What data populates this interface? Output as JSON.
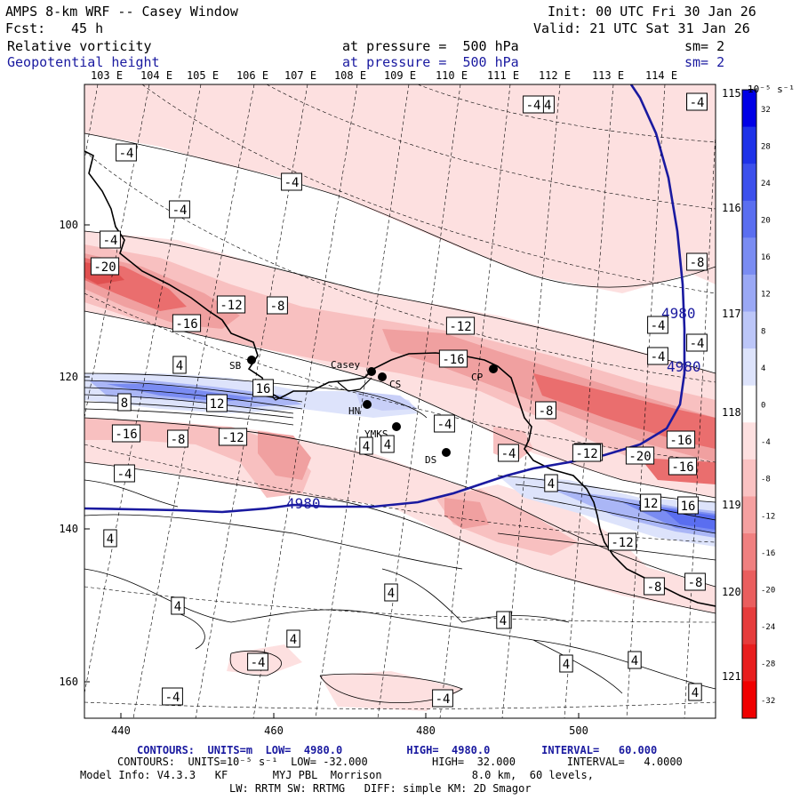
{
  "header": {
    "title": "AMPS 8-km WRF -- Casey Window",
    "fcst_label": "Fcst:",
    "fcst_value": "45 h",
    "init": "Init: 00 UTC Fri 30 Jan 26",
    "valid": "Valid: 21 UTC Sat 31 Jan 26",
    "field1_name": "Relative vorticity",
    "field1_level": "at pressure =  500 hPa",
    "field1_sm": "sm= 2",
    "field2_name": "Geopotential height",
    "field2_level": "at pressure =  500 hPa",
    "field2_sm": "sm= 2"
  },
  "axes": {
    "lon_top": [
      "103 E",
      "104 E",
      "105 E",
      "106 E",
      "107 E",
      "108 E",
      "109 E",
      "110 E",
      "111 E",
      "112 E",
      "113 E",
      "114 E"
    ],
    "lon_right": [
      "115 E",
      "116 E",
      "117 E",
      "118 E",
      "119 E",
      "120 E",
      "121 E"
    ],
    "y_ticks": [
      "100",
      "120",
      "140",
      "160"
    ],
    "x_ticks": [
      "440",
      "460",
      "480",
      "500"
    ]
  },
  "colorbar": {
    "unit": "10⁻⁵ s⁻¹",
    "labels": [
      "32",
      "28",
      "24",
      "20",
      "16",
      "12",
      "8",
      "4",
      "0",
      "-4",
      "-8",
      "-12",
      "-16",
      "-20",
      "-24",
      "-28",
      "-32"
    ],
    "colors": [
      "#0000e6",
      "#1e32e8",
      "#3c50ec",
      "#5a6ef0",
      "#7a8cf2",
      "#9aa8f5",
      "#bcc6f8",
      "#dde3fb",
      "#ffffff",
      "#fde0e0",
      "#fac2c2",
      "#f5a0a0",
      "#f08080",
      "#ea5e5e",
      "#e63c3c",
      "#e81e1e",
      "#f00000"
    ]
  },
  "stations": [
    {
      "name": "SB"
    },
    {
      "name": "Casey"
    },
    {
      "name": "CS"
    },
    {
      "name": "HN"
    },
    {
      "name": "YMKS"
    },
    {
      "name": "DS"
    },
    {
      "name": "CP"
    }
  ],
  "contour_labels": {
    "vorticity": [
      "-4",
      "-4",
      "-4",
      "-4",
      "-4",
      "-4",
      "-4",
      "-20",
      "-8",
      "-12",
      "-8",
      "-16",
      "-12",
      "-4",
      "4",
      "-16",
      "-4",
      "-4",
      "8",
      "16",
      "12",
      "-8",
      "-4",
      "-16",
      "-8",
      "-12",
      "-16",
      "-20",
      "4",
      "-12",
      "4",
      "-4",
      "12",
      "16",
      "-12",
      "-8",
      "4",
      "4",
      "4",
      "4",
      "-4",
      "4",
      "4",
      "-4",
      "4",
      "4",
      "-8",
      "-12",
      "-16",
      "-4",
      "-4",
      "-4",
      "4",
      "4"
    ],
    "height": [
      "4980",
      "4980",
      "4980"
    ]
  },
  "footer": {
    "line1": "CONTOURS:  UNITS=m  LOW=  4980.0          HIGH=  4980.0        INTERVAL=   60.000",
    "line2": "CONTOURS:  UNITS=10⁻⁵ s⁻¹  LOW= -32.000          HIGH=  32.000        INTERVAL=   4.0000",
    "line3": "Model Info: V4.3.3   KF       MYJ PBL  Morrison              8.0 km,  60 levels,",
    "line4": "LW: RRTM SW: RRTMG   DIFF: simple KM: 2D Smagor"
  }
}
